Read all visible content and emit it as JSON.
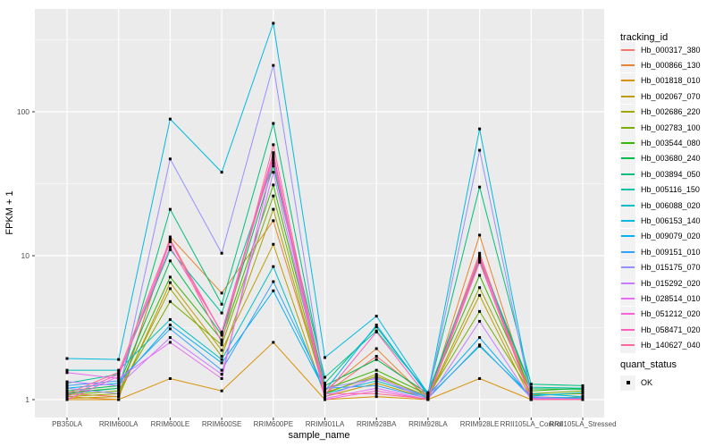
{
  "figure": {
    "panel_bg": "#EBEBEB",
    "grid_color": "#FFFFFF",
    "tick_color": "#333333",
    "tick_label_color": "#4D4D4D",
    "marker_color": "#000000",
    "legend_key_bg": "#F2F2F2"
  },
  "chart_data": {
    "type": "line",
    "title": "",
    "xlabel": "sample_name",
    "ylabel": "FPKM + 1",
    "y_scale": "log10",
    "grid": true,
    "legend_position": "right",
    "legend_title": "tracking_id",
    "y_tick_labels": [
      "1",
      "10",
      "100"
    ],
    "y_tick_values": [
      1,
      10,
      100
    ],
    "y_minor_tick_values": [
      3.162,
      31.62,
      316.2
    ],
    "ylim": [
      0.93,
      520
    ],
    "categories": [
      "PB350LA",
      "RRIM600LA",
      "RRIM600LE",
      "RRIM600SE",
      "RRIM600PE",
      "RRIM901LA",
      "RRIM928BA",
      "RRIM928LA",
      "RRIM928LE",
      "RRII105LA_Control",
      "RRII105LA_Stressed"
    ],
    "series": [
      {
        "name": "Hb_000317_380",
        "color": "#F8766D",
        "values": [
          1.1,
          1.05,
          13.0,
          2.9,
          50.0,
          1.1,
          2.0,
          1.05,
          10.4,
          1.05,
          1.02
        ]
      },
      {
        "name": "Hb_000866_130",
        "color": "#EA8331",
        "values": [
          1.05,
          1.0,
          13.5,
          5.5,
          17.5,
          1.15,
          2.26,
          1.0,
          13.9,
          1.02,
          1.0
        ]
      },
      {
        "name": "Hb_001818_010",
        "color": "#D89000",
        "values": [
          1.0,
          1.0,
          1.4,
          1.15,
          2.5,
          1.0,
          1.05,
          1.0,
          1.4,
          1.0,
          1.0
        ]
      },
      {
        "name": "Hb_002067_070",
        "color": "#C09B00",
        "values": [
          1.02,
          1.05,
          6.5,
          2.2,
          12.0,
          1.05,
          1.3,
          1.02,
          5.3,
          1.0,
          1.05
        ]
      },
      {
        "name": "Hb_002686_220",
        "color": "#A3A500",
        "values": [
          1.05,
          1.1,
          5.9,
          2.0,
          21.0,
          1.1,
          1.5,
          1.03,
          6.0,
          1.08,
          1.1
        ]
      },
      {
        "name": "Hb_002783_100",
        "color": "#7CAE00",
        "values": [
          1.08,
          1.15,
          4.8,
          2.4,
          26.0,
          1.12,
          1.45,
          1.06,
          4.1,
          1.1,
          1.15
        ]
      },
      {
        "name": "Hb_003544_080",
        "color": "#39B600",
        "values": [
          1.12,
          1.2,
          7.1,
          2.6,
          31.0,
          1.18,
          1.6,
          1.08,
          7.3,
          1.15,
          1.2
        ]
      },
      {
        "name": "Hb_003680_240",
        "color": "#00BB4E",
        "values": [
          1.15,
          1.25,
          9.2,
          2.8,
          42.0,
          1.25,
          1.9,
          1.1,
          9.4,
          1.19,
          1.18
        ]
      },
      {
        "name": "Hb_003894_050",
        "color": "#00BF7D",
        "values": [
          1.1,
          1.2,
          21.0,
          4.6,
          83.0,
          1.3,
          3.2,
          1.1,
          30.0,
          1.28,
          1.25
        ]
      },
      {
        "name": "Hb_005116_150",
        "color": "#00C1A3",
        "values": [
          1.3,
          1.5,
          11.0,
          4.0,
          44.0,
          1.43,
          3.0,
          1.12,
          9.7,
          1.22,
          1.2
        ]
      },
      {
        "name": "Hb_006088_020",
        "color": "#00BFC4",
        "values": [
          1.6,
          1.6,
          3.6,
          1.9,
          8.4,
          1.1,
          1.35,
          1.04,
          2.35,
          1.06,
          1.12
        ]
      },
      {
        "name": "Hb_006153_140",
        "color": "#00BAE0",
        "values": [
          1.93,
          1.9,
          89.0,
          38.0,
          412.0,
          1.96,
          3.8,
          1.1,
          76.0,
          1.1,
          1.05
        ]
      },
      {
        "name": "Hb_009079_020",
        "color": "#00B0F6",
        "values": [
          1.2,
          1.3,
          3.3,
          1.8,
          5.7,
          1.15,
          3.3,
          1.07,
          2.7,
          1.04,
          1.03
        ]
      },
      {
        "name": "Hb_009151_010",
        "color": "#35A2FF",
        "values": [
          1.25,
          1.35,
          3.1,
          1.6,
          6.6,
          1.2,
          1.25,
          1.02,
          2.4,
          1.03,
          1.02
        ]
      },
      {
        "name": "Hb_015175_070",
        "color": "#9590FF",
        "values": [
          1.2,
          1.1,
          47.0,
          10.4,
          210.0,
          1.2,
          1.4,
          1.05,
          54.0,
          1.05,
          1.0
        ]
      },
      {
        "name": "Hb_015292_020",
        "color": "#C77CFF",
        "values": [
          1.33,
          1.25,
          2.7,
          1.5,
          38.0,
          1.05,
          1.43,
          1.0,
          3.5,
          1.0,
          1.0
        ]
      },
      {
        "name": "Hb_028514_010",
        "color": "#E76BF3",
        "values": [
          1.54,
          1.4,
          2.5,
          1.4,
          46.0,
          1.02,
          1.2,
          1.0,
          9.0,
          1.02,
          1.0
        ]
      },
      {
        "name": "Hb_051212_020",
        "color": "#FA62DB",
        "values": [
          1.0,
          1.45,
          12.5,
          2.9,
          48.0,
          1.0,
          1.15,
          1.0,
          10.0,
          1.01,
          1.0
        ]
      },
      {
        "name": "Hb_058471_020",
        "color": "#FF62BC",
        "values": [
          1.05,
          1.5,
          11.5,
          2.95,
          52.0,
          1.08,
          2.95,
          1.03,
          9.8,
          1.0,
          1.01
        ]
      },
      {
        "name": "Hb_140627_040",
        "color": "#FF6A98",
        "values": [
          1.1,
          1.55,
          13.0,
          2.5,
          59.0,
          1.1,
          1.1,
          1.01,
          9.2,
          1.0,
          1.0
        ]
      }
    ],
    "point_marker_legend": {
      "title": "quant_status",
      "items": [
        {
          "label": "OK",
          "color": "#000000"
        }
      ]
    }
  }
}
